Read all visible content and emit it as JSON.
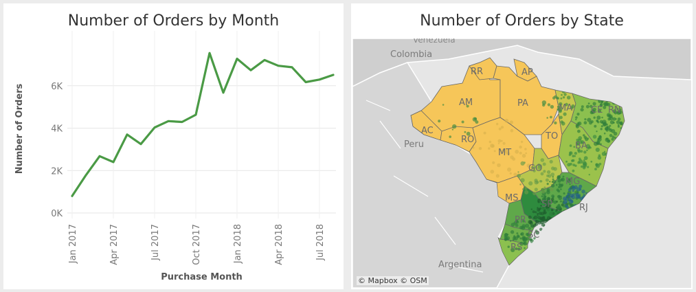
{
  "line_panel": {
    "title": "Number of Orders by Month"
  },
  "map_panel": {
    "title": "Number of Orders by State",
    "attribution": "© Mapbox  © OSM",
    "country_labels": [
      "Colombia",
      "Peru",
      "Argentina",
      "Venezuela"
    ],
    "state_labels": [
      "RR",
      "AP",
      "AM",
      "PA",
      "MA",
      "CE",
      "RN",
      "AC",
      "RO",
      "TO",
      "MT",
      "BA",
      "GO",
      "MG",
      "MS",
      "SP",
      "PR",
      "SC",
      "RS",
      "RJ"
    ],
    "colors": {
      "low": "#f6c659",
      "mid": "#8cc04f",
      "high": "#2e8b3e",
      "peak": "#1e5a8a",
      "land": "#cfcfcf",
      "water": "#e6e6e6"
    }
  },
  "chart_data": {
    "type": "line",
    "title": "Number of Orders by Month",
    "xlabel": "Purchase Month",
    "ylabel": "Number of Orders",
    "x": [
      "Jan 2017",
      "Feb 2017",
      "Mar 2017",
      "Apr 2017",
      "May 2017",
      "Jun 2017",
      "Jul 2017",
      "Aug 2017",
      "Sep 2017",
      "Oct 2017",
      "Nov 2017",
      "Dec 2017",
      "Jan 2018",
      "Feb 2018",
      "Mar 2018",
      "Apr 2018",
      "May 2018",
      "Jun 2018",
      "Jul 2018",
      "Aug 2018"
    ],
    "series": [
      {
        "values": [
          800,
          1780,
          2680,
          2400,
          3700,
          3250,
          4030,
          4330,
          4290,
          4630,
          7540,
          5670,
          7270,
          6730,
          7210,
          6940,
          6870,
          6170,
          6290,
          6510
        ],
        "color": "#4a9a45"
      }
    ],
    "ylim": [
      0,
      8000
    ],
    "yticks": [
      0,
      2000,
      4000,
      6000
    ],
    "ytick_labels": [
      "0K",
      "2K",
      "4K",
      "6K"
    ],
    "xtick_labels": [
      "Jan 2017",
      "Apr 2017",
      "Jul 2017",
      "Oct 2017",
      "Jan 2018",
      "Apr 2018",
      "Jul 2018"
    ],
    "xtick_positions": [
      "Jan 2017",
      "Apr 2017",
      "Jul 2017",
      "Oct 2017",
      "Jan 2018",
      "Apr 2018",
      "Jul 2018"
    ],
    "grid": true
  }
}
